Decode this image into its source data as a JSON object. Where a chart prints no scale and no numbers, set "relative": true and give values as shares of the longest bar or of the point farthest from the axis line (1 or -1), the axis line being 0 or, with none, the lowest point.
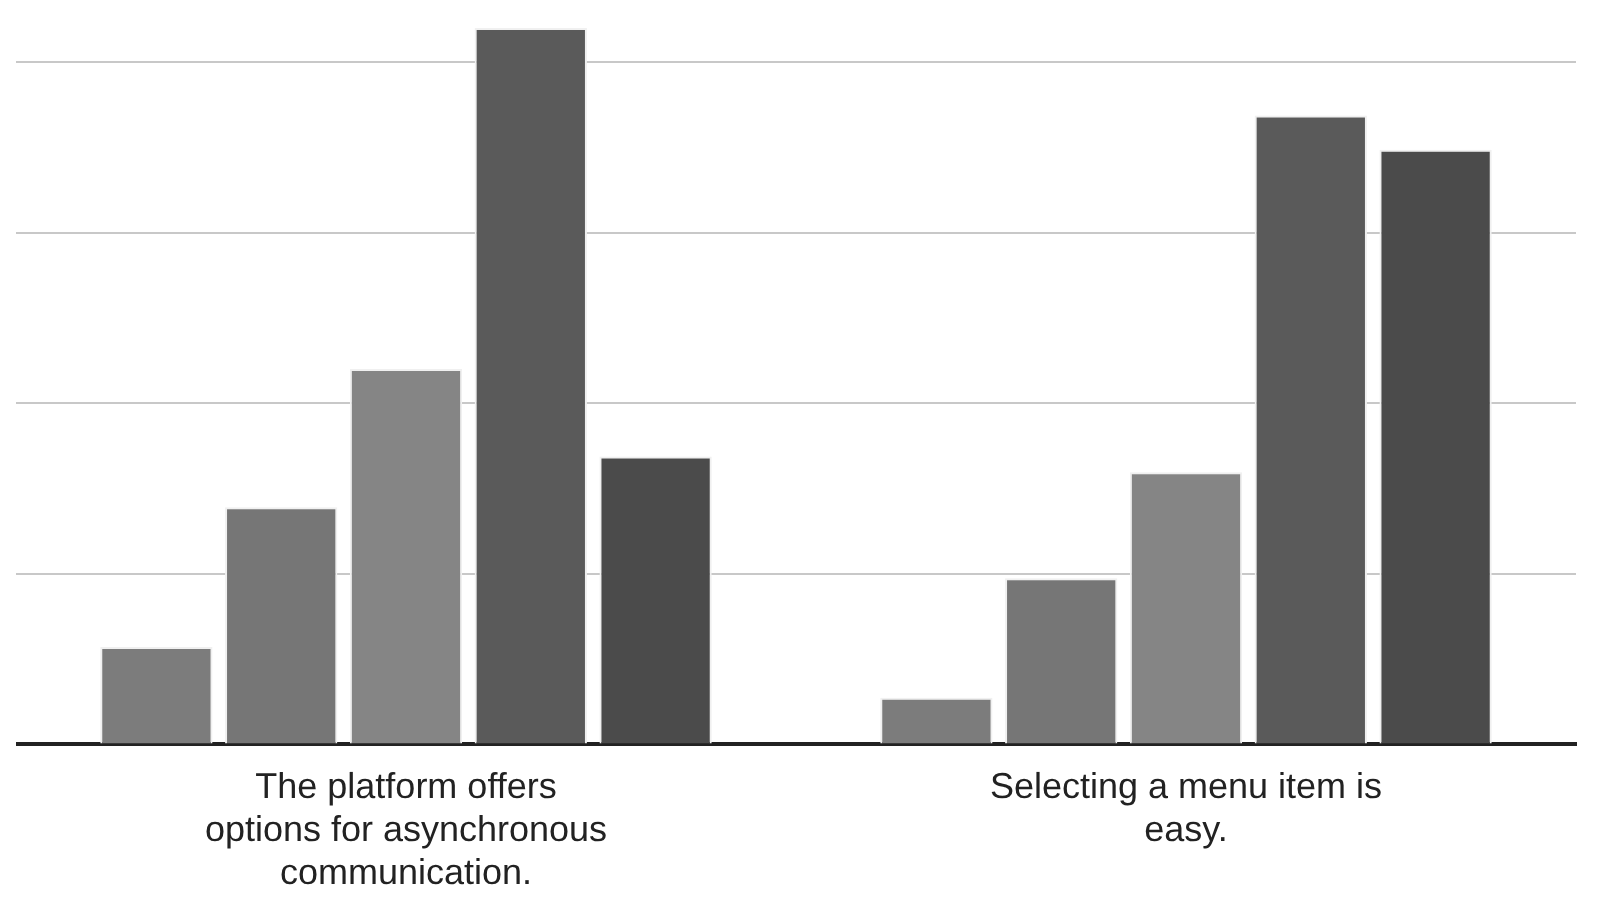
{
  "chart_data": {
    "type": "bar",
    "relative": true,
    "grid": "y",
    "legend": false,
    "categories": [
      "The platform offers options for asynchronous communication.",
      "Selecting a menu item is easy."
    ],
    "series": [
      {
        "color": "#7c7c7c",
        "values": [
          0.136,
          0.065
        ]
      },
      {
        "color": "#767676",
        "values": [
          0.331,
          0.232
        ]
      },
      {
        "color": "#858585",
        "values": [
          0.524,
          0.38
        ]
      },
      {
        "color": "#5a5a5a",
        "values": [
          1,
          0.878
        ]
      },
      {
        "color": "#4b4b4b",
        "values": [
          0.402,
          0.83
        ]
      }
    ]
  }
}
